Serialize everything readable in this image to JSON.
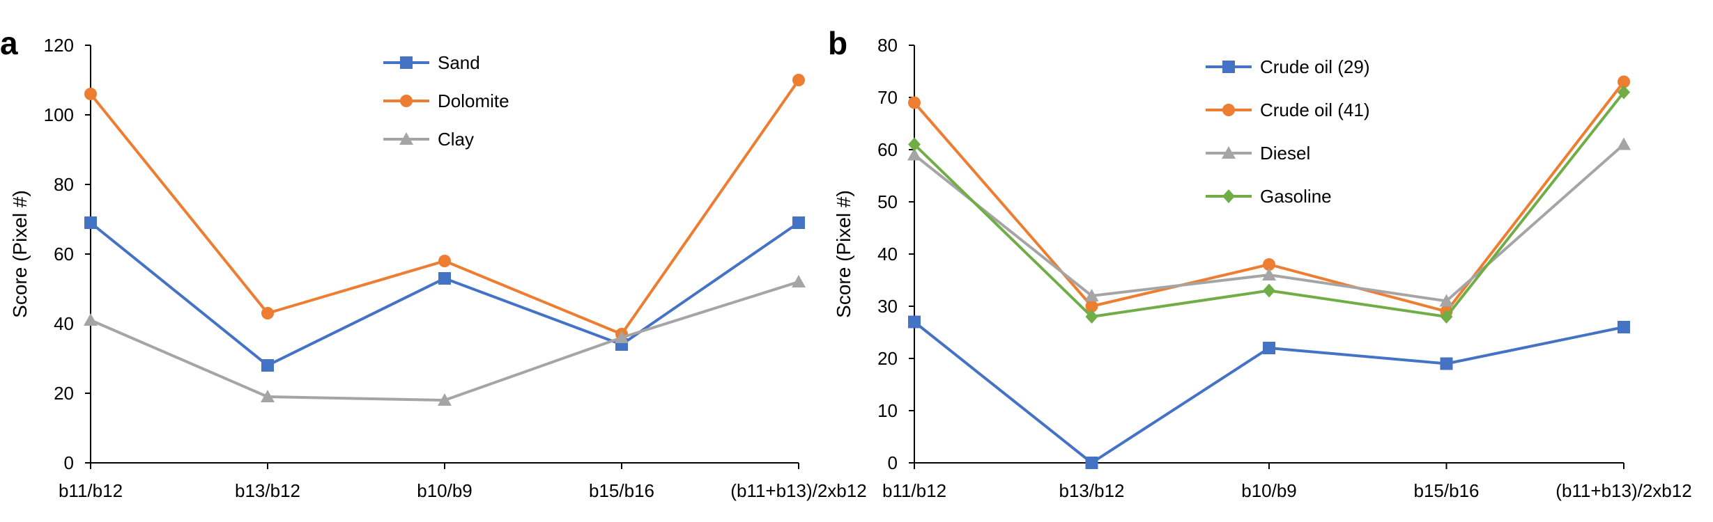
{
  "chart_data": [
    {
      "type": "line",
      "panel_label": "a",
      "categories": [
        "b11/b12",
        "b13/b12",
        "b10/b9",
        "b15/b16",
        "(b11+b13)/2xb12"
      ],
      "xlabel": "",
      "ylabel": "Score (Pixel #)",
      "ylim": [
        0,
        120
      ],
      "yticks": [
        0,
        20,
        40,
        60,
        80,
        100,
        120
      ],
      "grid": false,
      "legend_position": "top-center",
      "series": [
        {
          "name": "Sand",
          "values": [
            69,
            28,
            53,
            34,
            69
          ],
          "color": "#4472C4",
          "marker": "square"
        },
        {
          "name": "Dolomite",
          "values": [
            106,
            43,
            58,
            37,
            110
          ],
          "color": "#ED7D31",
          "marker": "circle"
        },
        {
          "name": "Clay",
          "values": [
            41,
            19,
            18,
            36,
            52
          ],
          "color": "#A5A5A5",
          "marker": "triangle"
        }
      ]
    },
    {
      "type": "line",
      "panel_label": "b",
      "categories": [
        "b11/b12",
        "b13/b12",
        "b10/b9",
        "b15/b16",
        "(b11+b13)/2xb12"
      ],
      "xlabel": "",
      "ylabel": "Score (Pixel #)",
      "ylim": [
        0,
        80
      ],
      "yticks": [
        0,
        10,
        20,
        30,
        40,
        50,
        60,
        70,
        80
      ],
      "grid": false,
      "legend_position": "top-center",
      "series": [
        {
          "name": "Crude oil (29)",
          "values": [
            27,
            0,
            22,
            19,
            26
          ],
          "color": "#4472C4",
          "marker": "square"
        },
        {
          "name": "Crude oil (41)",
          "values": [
            69,
            30,
            38,
            29,
            73
          ],
          "color": "#ED7D31",
          "marker": "circle"
        },
        {
          "name": "Diesel",
          "values": [
            59,
            32,
            36,
            31,
            61
          ],
          "color": "#A5A5A5",
          "marker": "triangle"
        },
        {
          "name": "Gasoline",
          "values": [
            61,
            28,
            33,
            28,
            71
          ],
          "color": "#70AD47",
          "marker": "diamond"
        }
      ]
    }
  ]
}
